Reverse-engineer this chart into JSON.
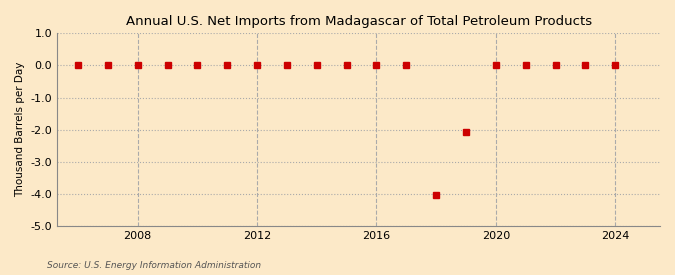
{
  "title": "Annual U.S. Net Imports from Madagascar of Total Petroleum Products",
  "ylabel": "Thousand Barrels per Day",
  "source": "Source: U.S. Energy Information Administration",
  "background_color": "#fce9c8",
  "plot_bg_color": "#fce9c8",
  "marker_color": "#cc0000",
  "marker_size": 4,
  "xlim": [
    2005.3,
    2025.5
  ],
  "ylim": [
    -5.0,
    1.0
  ],
  "yticks": [
    1.0,
    0.0,
    -1.0,
    -2.0,
    -3.0,
    -4.0,
    -5.0
  ],
  "xticks": [
    2008,
    2012,
    2016,
    2020,
    2024
  ],
  "years": [
    2006,
    2007,
    2008,
    2009,
    2010,
    2011,
    2012,
    2013,
    2014,
    2015,
    2016,
    2017,
    2018,
    2019,
    2020,
    2021,
    2022,
    2023,
    2024
  ],
  "values": [
    0,
    0,
    0,
    0,
    0,
    0,
    0,
    0,
    0,
    0,
    0,
    0,
    -4.05,
    -2.06,
    0,
    0,
    0,
    0,
    0
  ]
}
